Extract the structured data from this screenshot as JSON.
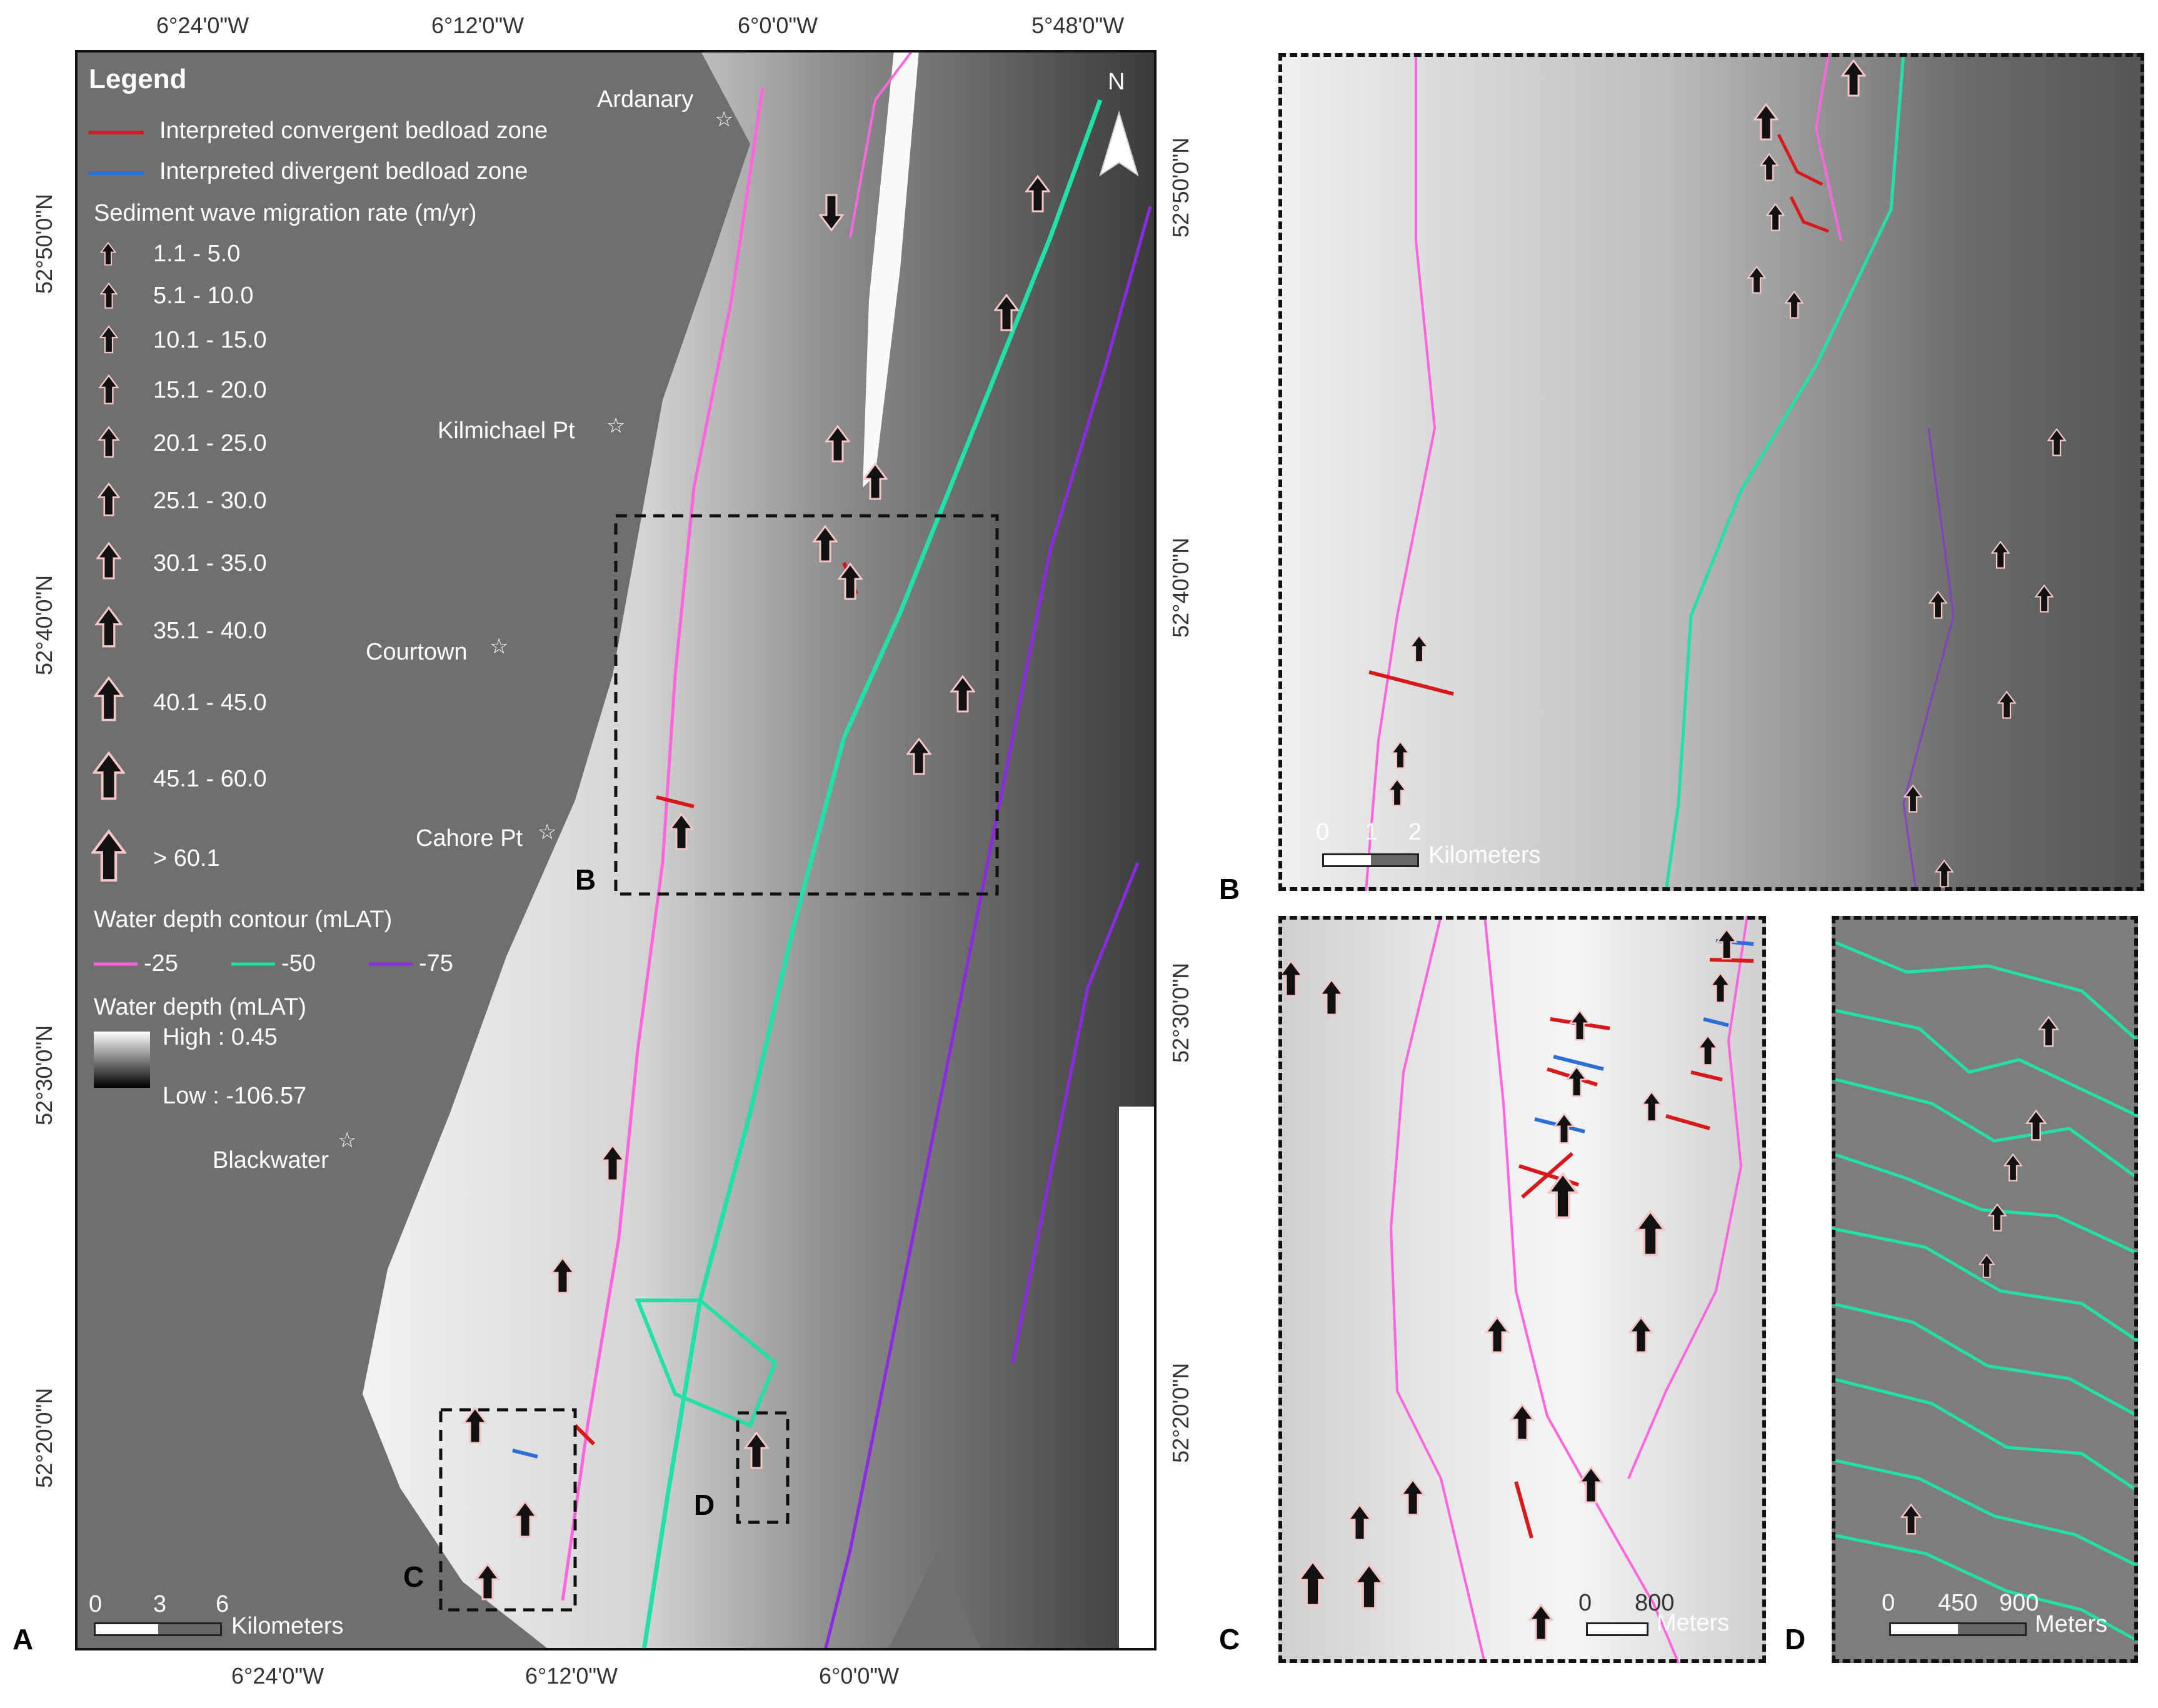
{
  "panel_labels": {
    "A": "A",
    "B": "B",
    "C": "C",
    "D": "D"
  },
  "inset_refs": {
    "B": "B",
    "C": "C",
    "D": "D"
  },
  "ticks": {
    "top": [
      "6°24'0\"W",
      "6°12'0\"W",
      "6°0'0\"W",
      "5°48'0\"W"
    ],
    "bottom": [
      "6°24'0\"W",
      "6°12'0\"W",
      "6°0'0\"W"
    ],
    "left": [
      "52°50'0\"N",
      "52°40'0\"N",
      "52°30'0\"N",
      "52°20'0\"N"
    ],
    "right": [
      "52°50'0\"N",
      "52°40'0\"N",
      "52°30'0\"N",
      "52°20'0\"N"
    ]
  },
  "places": {
    "ardanary": "Ardanary",
    "kilmichael": "Kilmichael Pt",
    "courtown": "Courtown",
    "cahore": "Cahore Pt",
    "blackwater": "Blackwater"
  },
  "north_arrow": "N",
  "legend": {
    "title": "Legend",
    "convergent": "Interpreted convergent bedload zone",
    "divergent": "Interpreted divergent bedload zone",
    "migration_title": "Sediment wave migration rate (m/yr)",
    "migration_classes": [
      "1.1 - 5.0",
      "5.1 - 10.0",
      "10.1 - 15.0",
      "15.1 - 20.0",
      "20.1 - 25.0",
      "25.1 - 30.0",
      "30.1 - 35.0",
      "35.1 - 40.0",
      "40.1 - 45.0",
      "45.1 - 60.0",
      "> 60.1"
    ],
    "contour_title": "Water depth contour (mLAT)",
    "contours": [
      "-25",
      "-50",
      "-75"
    ],
    "depth_title": "Water depth (mLAT)",
    "depth_high": "High : 0.45",
    "depth_low": "Low : -106.57"
  },
  "colors": {
    "convergent": "#d7191c",
    "divergent": "#2b6fd6",
    "contour_25": "#ff66dd",
    "contour_50": "#22e0a8",
    "contour_75": "#8a2be2",
    "land": "#6f6f6f",
    "arrow_fill": "#111111",
    "arrow_outline": "#f4c6c6"
  },
  "scales": {
    "A": {
      "ticks": [
        "0",
        "3",
        "6"
      ],
      "unit": "Kilometers"
    },
    "B": {
      "ticks": [
        "0",
        "1",
        "2"
      ],
      "unit": "Kilometers"
    },
    "C": {
      "ticks": [
        "0",
        "800"
      ],
      "unit": "Meters"
    },
    "D": {
      "ticks": [
        "0",
        "450",
        "900"
      ],
      "unit": "Meters"
    }
  }
}
